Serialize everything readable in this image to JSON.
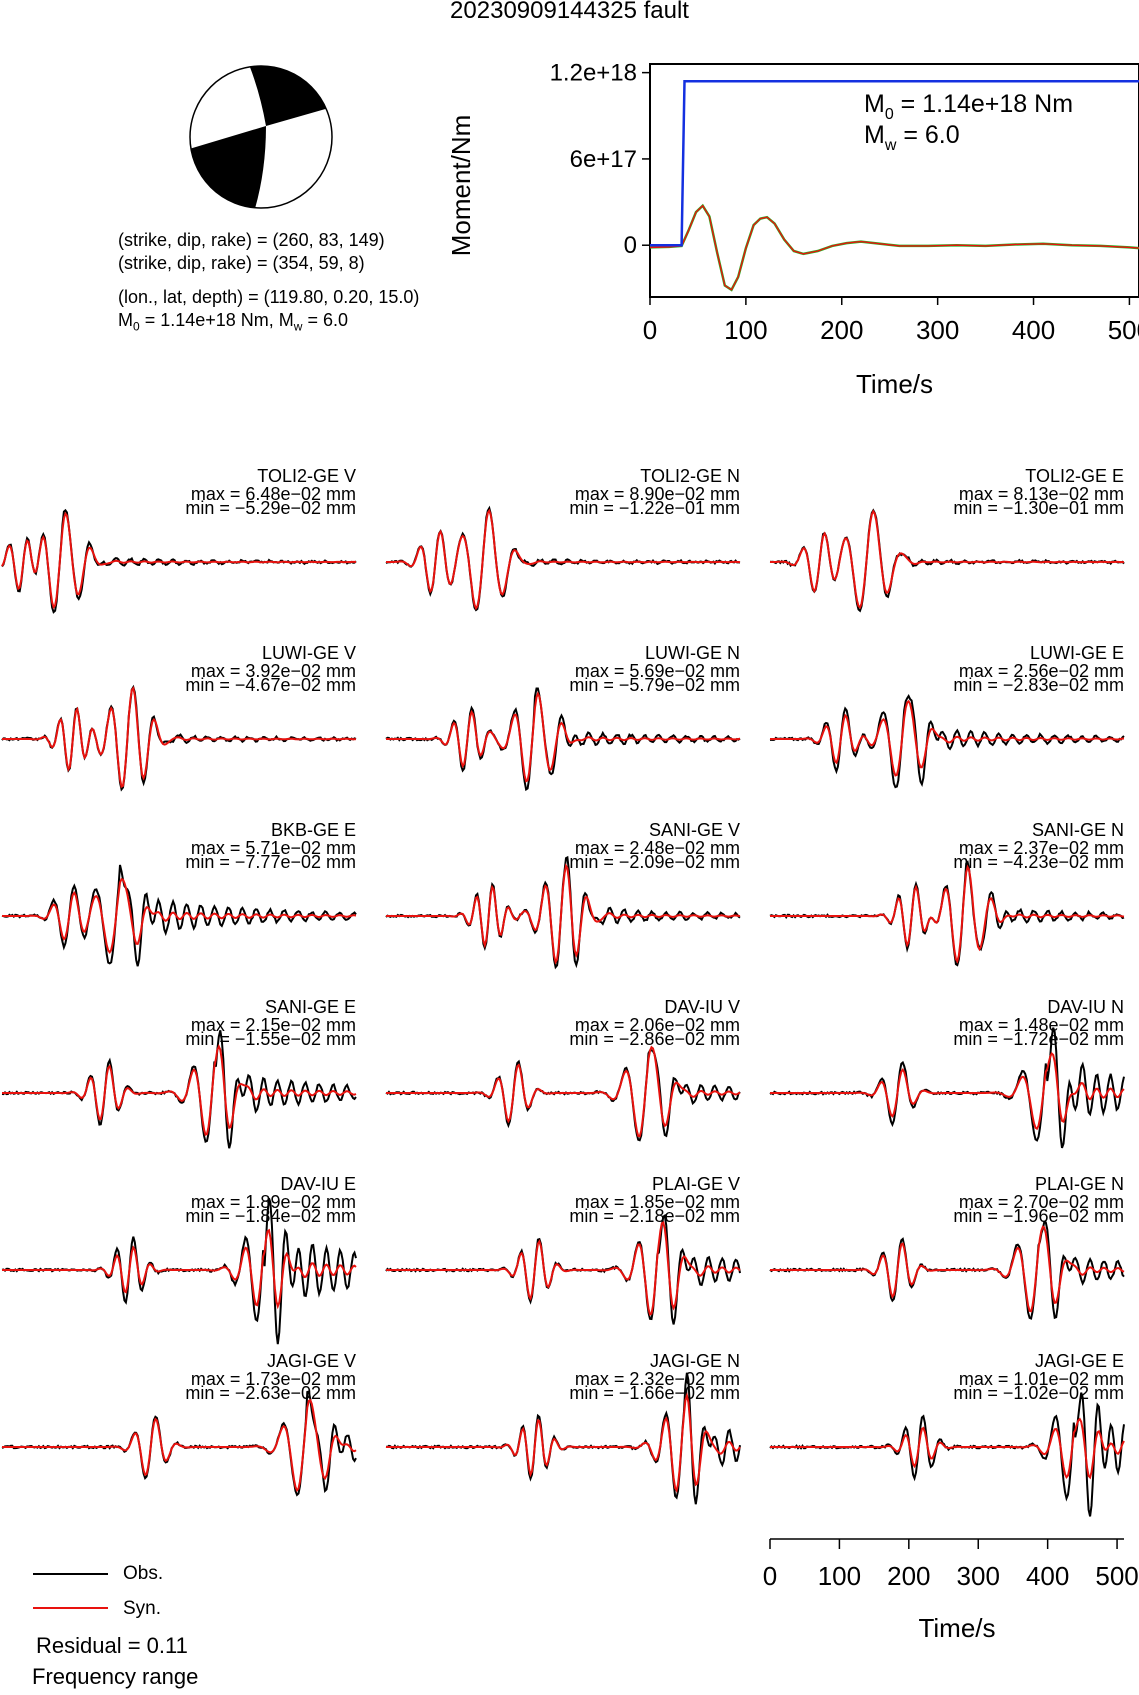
{
  "title": "20230909144325 fault",
  "mechanism": {
    "line1": "(strike, dip, rake) = (260, 83, 149)",
    "line2": "(strike, dip, rake) = (354, 59, 8)",
    "line3": "(lon., lat, depth) = (119.80, 0.20, 15.0)",
    "line4_prefix": "M",
    "line4_sub": "0",
    "line4_mid": " = 1.14e+18 Nm, M",
    "line4_sub2": "w",
    "line4_end": " = 6.0"
  },
  "colors": {
    "observed": "#000000",
    "synthetic": "#e8120e",
    "moment_cumulative": "#1430e0",
    "moment_rate_green": "#22b522",
    "moment_rate_red": "#e8120e"
  },
  "chart_data": [
    {
      "type": "line",
      "name": "moment-function",
      "ylabel": "Moment/Nm",
      "xlabel": "Time/s",
      "xlim": [
        0,
        510
      ],
      "ylim": [
        -3.6e+17,
        1.26e+18
      ],
      "xticks": [
        0,
        100,
        200,
        300,
        400,
        500
      ],
      "xtick_labels": [
        "0",
        "100",
        "200",
        "300",
        "400",
        "500"
      ],
      "yticks": [
        0,
        6e+17,
        1.2e+18
      ],
      "ytick_labels": [
        "0",
        "6e+17",
        "1.2e+18"
      ],
      "annotation_m0": "= 1.14e+18 Nm",
      "annotation_mw": "= 6.0",
      "cumulative_moment": {
        "x": [
          0,
          33,
          36,
          510
        ],
        "y": [
          0,
          0,
          1.14e+18,
          1.14e+18
        ]
      },
      "moment_rate": {
        "x": [
          0,
          20,
          33,
          40,
          48,
          55,
          62,
          70,
          78,
          85,
          92,
          100,
          108,
          115,
          122,
          130,
          140,
          150,
          160,
          175,
          190,
          205,
          220,
          240,
          260,
          290,
          320,
          350,
          380,
          410,
          440,
          470,
          500,
          510
        ],
        "y": [
          -1.5e+16,
          -1.2e+16,
          -5000000000000000.0,
          1e+17,
          2.3e+17,
          2.75e+17,
          2e+17,
          -5e+16,
          -2.8e+17,
          -3.1e+17,
          -2.2e+17,
          -2e+16,
          1.4e+17,
          1.85e+17,
          1.95e+17,
          1.5e+17,
          4e+16,
          -4e+16,
          -6e+16,
          -4e+16,
          -5000000000000000.0,
          1.5e+16,
          2.5e+16,
          1e+16,
          -5000000000000000.0,
          -5000000000000000.0,
          0,
          -5000000000000000.0,
          5000000000000000.0,
          1e+16,
          0,
          -5000000000000000.0,
          -1.5e+16,
          -2e+16
        ]
      }
    },
    {
      "type": "line",
      "name": "waveform-fits",
      "xlabel": "Time/s",
      "xlim": [
        0,
        510
      ],
      "xticks": [
        0,
        100,
        200,
        300,
        400,
        500
      ],
      "xtick_labels": [
        "0",
        "100",
        "200",
        "300",
        "400",
        "500"
      ],
      "legend": [
        "Obs.",
        "Syn."
      ],
      "panels": [
        {
          "station": "TOLI2-GE V",
          "max": "max = 6.48e−02 mm",
          "min": "min = −5.29e−02 mm",
          "p": 0.06,
          "q": 0.17,
          "o": 0.08,
          "s": 0.9
        },
        {
          "station": "TOLI2-GE N",
          "max": "max = 8.90e−02 mm",
          "min": "min = −1.22e−01 mm",
          "p": 0.14,
          "q": 0.28,
          "o": 0.05,
          "s": 0.95
        },
        {
          "station": "TOLI2-GE E",
          "max": "max = 8.13e−02 mm",
          "min": "min = −1.30e−01 mm",
          "p": 0.14,
          "q": 0.28,
          "o": 0.05,
          "s": 0.95
        },
        {
          "station": "LUWI-GE V",
          "max": "max = 3.92e−02 mm",
          "min": "min = −4.67e−02 mm",
          "p": 0.2,
          "q": 0.36,
          "o": 0.08,
          "s": 0.95
        },
        {
          "station": "LUWI-GE N",
          "max": "max = 5.69e−02 mm",
          "min": "min = −5.79e−02 mm",
          "p": 0.23,
          "q": 0.42,
          "o": 0.15,
          "s": 0.85
        },
        {
          "station": "LUWI-GE E",
          "max": "max = 2.56e−02 mm",
          "min": "min = −2.83e−02 mm",
          "p": 0.2,
          "q": 0.38,
          "o": 0.2,
          "s": 0.75
        },
        {
          "station": "BKB-GE E",
          "max": "max = 5.71e−02 mm",
          "min": "min = −7.77e−02 mm",
          "p": 0.19,
          "q": 0.33,
          "o": 0.35,
          "s": 0.75
        },
        {
          "station": "SANI-GE V",
          "max": "max = 2.48e−02 mm",
          "min": "min = −2.09e−02 mm",
          "p": 0.29,
          "q": 0.5,
          "o": 0.15,
          "s": 0.9
        },
        {
          "station": "SANI-GE N",
          "max": "max = 2.37e−02 mm",
          "min": "min = −4.23e−02 mm",
          "p": 0.4,
          "q": 0.55,
          "o": 0.15,
          "s": 0.9
        },
        {
          "station": "SANI-GE E",
          "max": "max = 2.15e−02 mm",
          "min": "min = −1.55e−02 mm",
          "p": 0.29,
          "q": 0.6,
          "o": 0.35,
          "s": 0.85
        },
        {
          "station": "DAV-IU V",
          "max": "max = 2.06e−02 mm",
          "min": "min = −2.86e−02 mm",
          "p": 0.36,
          "q": 0.74,
          "o": 0.2,
          "s": 0.9
        },
        {
          "station": "DAV-IU N",
          "max": "max = 1.48e−02 mm",
          "min": "min = −1.72e−02 mm",
          "p": 0.36,
          "q": 0.78,
          "o": 0.5,
          "s": 0.75
        },
        {
          "station": "DAV-IU E",
          "max": "max = 1.89e−02 mm",
          "min": "min = −1.84e−02 mm",
          "p": 0.36,
          "q": 0.74,
          "o": 0.6,
          "s": 0.7
        },
        {
          "station": "PLAI-GE V",
          "max": "max = 1.85e−02 mm",
          "min": "min = −2.18e−02 mm",
          "p": 0.42,
          "q": 0.77,
          "o": 0.3,
          "s": 0.9
        },
        {
          "station": "PLAI-GE N",
          "max": "max = 2.70e−02 mm",
          "min": "min = −1.96e−02 mm",
          "p": 0.36,
          "q": 0.76,
          "o": 0.25,
          "s": 0.85
        },
        {
          "station": "JAGI-GE V",
          "max": "max = 1.73e−02 mm",
          "min": "min = −2.63e−02 mm",
          "p": 0.42,
          "q": 0.86,
          "o": 0.3,
          "s": 0.9
        },
        {
          "station": "JAGI-GE N",
          "max": "max = 2.32e−02 mm",
          "min": "min = −1.66e−02 mm",
          "p": 0.42,
          "q": 0.84,
          "o": 0.35,
          "s": 0.85
        },
        {
          "station": "JAGI-GE E",
          "max": "max = 1.01e−02 mm",
          "min": "min = −1.02e−02 mm",
          "p": 0.42,
          "q": 0.86,
          "o": 0.6,
          "s": 0.6
        }
      ]
    }
  ],
  "legend": {
    "obs_label": "Obs.",
    "syn_label": "Syn."
  },
  "residual_text": "Residual = 0.11",
  "frequency_text": "Frequency range"
}
